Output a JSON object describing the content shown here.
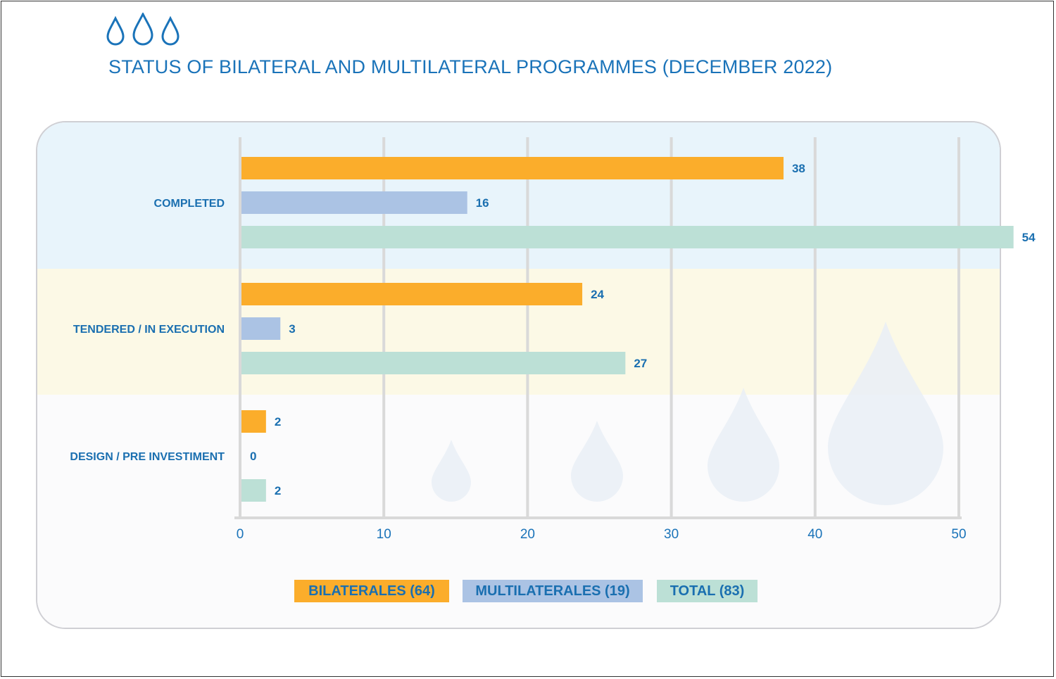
{
  "page": {
    "title": "STATUS OF BILATERAL AND MULTILATERAL PROGRAMMES (DECEMBER 2022)",
    "icon": "water-drops-icon"
  },
  "colors": {
    "title": "#1a73b9",
    "bilaterales": "#fbad2b",
    "multilaterales": "#abc3e4",
    "total": "#bce0d6",
    "grid": "#d9d9d9"
  },
  "legend": {
    "items": [
      {
        "label": "BILATERALES (64)",
        "color": "#fbad2b"
      },
      {
        "label": "MULTILATERALES (19)",
        "color": "#abc3e4"
      },
      {
        "label": "TOTAL (83)",
        "color": "#bce0d6"
      }
    ]
  },
  "chart_data": {
    "type": "bar",
    "orientation": "horizontal",
    "title": "STATUS OF BILATERAL AND MULTILATERAL PROGRAMMES (DECEMBER 2022)",
    "categories": [
      "COMPLETED",
      "TENDERED / IN EXECUTION",
      "DESIGN / PRE INVESTIMENT"
    ],
    "series": [
      {
        "name": "BILATERALES (64)",
        "values": [
          38,
          24,
          2
        ]
      },
      {
        "name": "MULTILATERALES (19)",
        "values": [
          16,
          3,
          0
        ]
      },
      {
        "name": "TOTAL (83)",
        "values": [
          54,
          27,
          2
        ]
      }
    ],
    "xlim": [
      0,
      50
    ],
    "xticks": [
      0,
      10,
      20,
      30,
      40,
      50
    ],
    "xlabel": "",
    "ylabel": "",
    "grid": true,
    "legend_position": "bottom"
  }
}
